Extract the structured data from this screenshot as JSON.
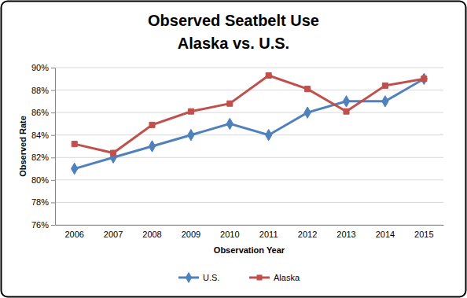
{
  "chart_data": {
    "type": "line",
    "title": "Observed Seatbelt Use",
    "subtitle": "Alaska vs. U.S.",
    "x_label": "Observation Year",
    "y_label": "Observed Rate",
    "categories": [
      "2006",
      "2007",
      "2008",
      "2009",
      "2010",
      "2011",
      "2012",
      "2013",
      "2014",
      "2015"
    ],
    "series": [
      {
        "name": "U.S.",
        "color": "#4f81bd",
        "marker": "diamond",
        "values": [
          81,
          82,
          83,
          84,
          85,
          84,
          86,
          87,
          87,
          89
        ]
      },
      {
        "name": "Alaska",
        "color": "#c0504d",
        "marker": "square",
        "values": [
          83.2,
          82.4,
          84.9,
          86.1,
          86.8,
          89.3,
          88.1,
          86.1,
          88.4,
          89.0
        ]
      }
    ],
    "ylim": [
      76,
      90
    ],
    "yticks": [
      {
        "value": 76,
        "label": "76%"
      },
      {
        "value": 78,
        "label": "78%"
      },
      {
        "value": 80,
        "label": "80%"
      },
      {
        "value": 82,
        "label": "82%"
      },
      {
        "value": 84,
        "label": "84%"
      },
      {
        "value": 86,
        "label": "86%"
      },
      {
        "value": 88,
        "label": "88%"
      },
      {
        "value": 90,
        "label": "90%"
      }
    ],
    "grid": true,
    "legend": "bottom"
  }
}
